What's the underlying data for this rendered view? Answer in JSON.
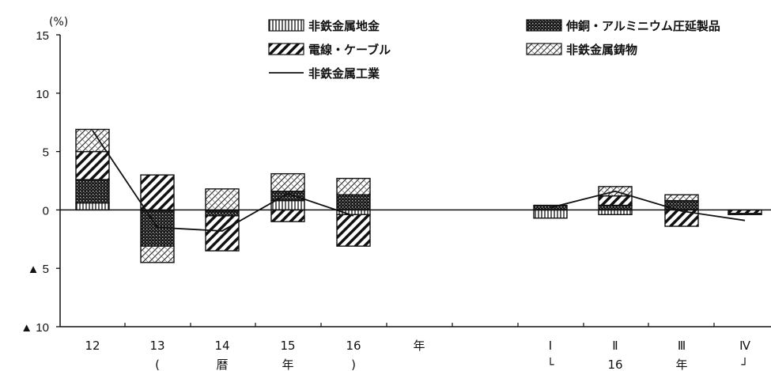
{
  "chart_data": {
    "type": "bar",
    "stacked": true,
    "unit_label": "(%)",
    "ylim": [
      -10,
      15
    ],
    "y_ticks": [
      {
        "value": 15,
        "label": "15"
      },
      {
        "value": 10,
        "label": "10"
      },
      {
        "value": 5,
        "label": "5"
      },
      {
        "value": 0,
        "label": "0"
      },
      {
        "value": -5,
        "label": "▲ 5"
      },
      {
        "value": -10,
        "label": "▲ 10"
      }
    ],
    "categories": [
      "12",
      "13",
      "14",
      "15",
      "16",
      "I",
      "II",
      "III",
      "IV"
    ],
    "category_labels": [
      "12",
      "13",
      "14",
      "15",
      "16",
      "Ⅰ",
      "Ⅱ",
      "Ⅲ",
      "Ⅳ"
    ],
    "x_group_labels": {
      "annual": {
        "unit": "年",
        "bracket": [
          "(",
          "暦",
          "年",
          ")"
        ]
      },
      "quarterly": {
        "bracket": [
          "└",
          "16",
          "年",
          "┘"
        ]
      }
    },
    "series": [
      {
        "name": "非鉄金属地金",
        "kind": "bar",
        "pattern": "vertical",
        "values": [
          0.6,
          -0.1,
          -0.1,
          0.8,
          -0.4,
          -0.7,
          -0.4,
          0.0,
          0.0
        ]
      },
      {
        "name": "伸銅・アルミニウム圧延製品",
        "kind": "bar",
        "pattern": "dots",
        "values": [
          2.0,
          -3.0,
          -0.4,
          0.8,
          1.3,
          0.4,
          0.4,
          0.8,
          0.0
        ]
      },
      {
        "name": "電線・ケーブル",
        "kind": "bar",
        "pattern": "diag",
        "values": [
          2.4,
          3.0,
          -3.0,
          -1.0,
          -2.7,
          0.0,
          0.8,
          -1.4,
          -0.3
        ]
      },
      {
        "name": "非鉄金属鋳物",
        "kind": "bar",
        "pattern": "cross",
        "values": [
          1.9,
          -1.4,
          1.8,
          1.5,
          1.4,
          0.0,
          0.8,
          0.5,
          -0.1
        ]
      },
      {
        "name": "非鉄金属工業",
        "kind": "line",
        "values": [
          6.8,
          -1.5,
          -1.8,
          1.4,
          -0.5,
          0.2,
          1.6,
          -0.1,
          -0.9
        ]
      }
    ],
    "legend": {
      "placement": "top",
      "items": [
        {
          "label": "非鉄金属地金",
          "pattern": "vertical"
        },
        {
          "label": "伸銅・アルミニウム圧延製品",
          "pattern": "dots"
        },
        {
          "label": "電線・ケーブル",
          "pattern": "diag"
        },
        {
          "label": "非鉄金属鋳物",
          "pattern": "cross"
        },
        {
          "label": "非鉄金属工業",
          "pattern": "line"
        }
      ]
    },
    "grid": false
  }
}
